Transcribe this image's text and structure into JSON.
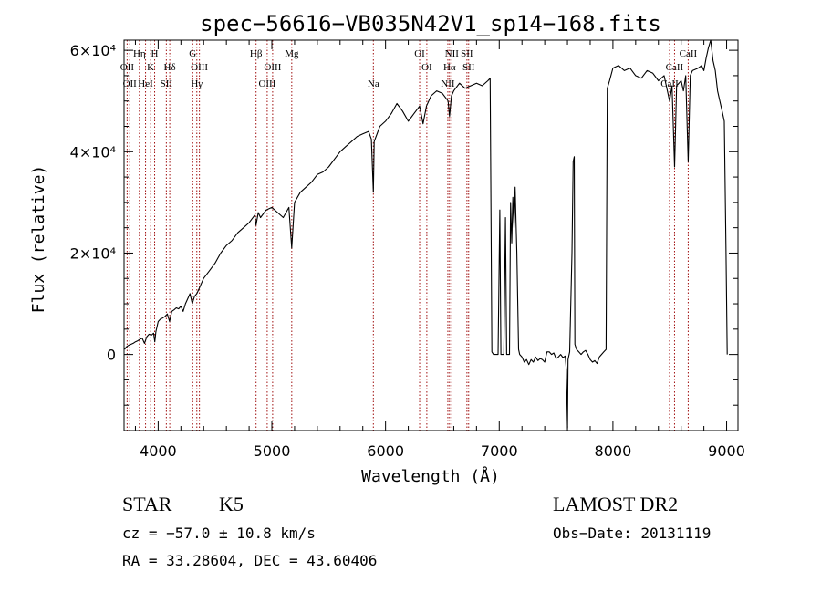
{
  "chart_data": {
    "type": "line",
    "title": "spec−56616−VB035N42V1_sp14−168.fits",
    "xlabel": "Wavelength (Å)",
    "ylabel": "Flux (relative)",
    "xlim": [
      3700,
      9100
    ],
    "ylim": [
      -15000,
      62000
    ],
    "grid": false,
    "x_ticks": [
      {
        "value": 4000,
        "label": "4000"
      },
      {
        "value": 5000,
        "label": "5000"
      },
      {
        "value": 6000,
        "label": "6000"
      },
      {
        "value": 7000,
        "label": "7000"
      },
      {
        "value": 8000,
        "label": "8000"
      },
      {
        "value": 9000,
        "label": "9000"
      }
    ],
    "y_ticks": [
      {
        "value": 0,
        "label": "0"
      },
      {
        "value": 20000,
        "label": "2×10⁴"
      },
      {
        "value": 40000,
        "label": "4×10⁴"
      },
      {
        "value": 60000,
        "label": "6×10⁴"
      }
    ],
    "series": [
      {
        "values": [
          [
            3705,
            1000
          ],
          [
            3720,
            1500
          ],
          [
            3740,
            1800
          ],
          [
            3760,
            2000
          ],
          [
            3780,
            2200
          ],
          [
            3800,
            2500
          ],
          [
            3820,
            2700
          ],
          [
            3840,
            3000
          ],
          [
            3860,
            3200
          ],
          [
            3880,
            2200
          ],
          [
            3900,
            3500
          ],
          [
            3920,
            4000
          ],
          [
            3940,
            3800
          ],
          [
            3960,
            4200
          ],
          [
            3970,
            2500
          ],
          [
            3980,
            4500
          ],
          [
            4000,
            6500
          ],
          [
            4020,
            7000
          ],
          [
            4040,
            7200
          ],
          [
            4060,
            7500
          ],
          [
            4080,
            8000
          ],
          [
            4100,
            6500
          ],
          [
            4120,
            8500
          ],
          [
            4140,
            8800
          ],
          [
            4160,
            9200
          ],
          [
            4180,
            9000
          ],
          [
            4200,
            9500
          ],
          [
            4220,
            8500
          ],
          [
            4240,
            10000
          ],
          [
            4260,
            11000
          ],
          [
            4280,
            12000
          ],
          [
            4300,
            10000
          ],
          [
            4320,
            11500
          ],
          [
            4340,
            12000
          ],
          [
            4360,
            13000
          ],
          [
            4380,
            14000
          ],
          [
            4400,
            15000
          ],
          [
            4450,
            16500
          ],
          [
            4500,
            18000
          ],
          [
            4550,
            20000
          ],
          [
            4600,
            21500
          ],
          [
            4650,
            22500
          ],
          [
            4700,
            24000
          ],
          [
            4750,
            25000
          ],
          [
            4800,
            26000
          ],
          [
            4850,
            27500
          ],
          [
            4861,
            25500
          ],
          [
            4880,
            28000
          ],
          [
            4900,
            27000
          ],
          [
            4950,
            28500
          ],
          [
            5000,
            29000
          ],
          [
            5050,
            28000
          ],
          [
            5100,
            27000
          ],
          [
            5150,
            29000
          ],
          [
            5175,
            21000
          ],
          [
            5200,
            30000
          ],
          [
            5250,
            32000
          ],
          [
            5300,
            33000
          ],
          [
            5350,
            34000
          ],
          [
            5400,
            35500
          ],
          [
            5450,
            36000
          ],
          [
            5500,
            37000
          ],
          [
            5550,
            38500
          ],
          [
            5600,
            40000
          ],
          [
            5650,
            41000
          ],
          [
            5700,
            42000
          ],
          [
            5750,
            43000
          ],
          [
            5800,
            43500
          ],
          [
            5850,
            44000
          ],
          [
            5875,
            42500
          ],
          [
            5893,
            32000
          ],
          [
            5900,
            42000
          ],
          [
            5950,
            45000
          ],
          [
            6000,
            46000
          ],
          [
            6050,
            47500
          ],
          [
            6100,
            49500
          ],
          [
            6150,
            48000
          ],
          [
            6200,
            46000
          ],
          [
            6250,
            47500
          ],
          [
            6300,
            49000
          ],
          [
            6330,
            45500
          ],
          [
            6360,
            49000
          ],
          [
            6400,
            51000
          ],
          [
            6450,
            52000
          ],
          [
            6500,
            51500
          ],
          [
            6550,
            50000
          ],
          [
            6563,
            47000
          ],
          [
            6580,
            51000
          ],
          [
            6600,
            52000
          ],
          [
            6650,
            53500
          ],
          [
            6700,
            52500
          ],
          [
            6750,
            53000
          ],
          [
            6800,
            53500
          ],
          [
            6850,
            53000
          ],
          [
            6900,
            54000
          ],
          [
            6920,
            54500
          ],
          [
            6935,
            500
          ],
          [
            6950,
            0
          ],
          [
            6990,
            0
          ],
          [
            7005,
            28500
          ],
          [
            7015,
            0
          ],
          [
            7040,
            0
          ],
          [
            7055,
            27000
          ],
          [
            7065,
            0
          ],
          [
            7090,
            0
          ],
          [
            7100,
            30000
          ],
          [
            7110,
            22000
          ],
          [
            7120,
            31000
          ],
          [
            7130,
            25000
          ],
          [
            7140,
            33000
          ],
          [
            7155,
            20000
          ],
          [
            7170,
            1000
          ],
          [
            7180,
            0
          ],
          [
            7200,
            -500
          ],
          [
            7220,
            -1500
          ],
          [
            7240,
            -1000
          ],
          [
            7260,
            -2000
          ],
          [
            7280,
            -1000
          ],
          [
            7300,
            -1500
          ],
          [
            7320,
            -500
          ],
          [
            7340,
            -1200
          ],
          [
            7360,
            -800
          ],
          [
            7380,
            -1000
          ],
          [
            7400,
            -1500
          ],
          [
            7420,
            500
          ],
          [
            7440,
            500
          ],
          [
            7460,
            0
          ],
          [
            7480,
            300
          ],
          [
            7500,
            -800
          ],
          [
            7520,
            -500
          ],
          [
            7540,
            0
          ],
          [
            7560,
            -600
          ],
          [
            7580,
            -300
          ],
          [
            7590,
            -3000
          ],
          [
            7600,
            -14500
          ],
          [
            7605,
            -1000
          ],
          [
            7620,
            500
          ],
          [
            7640,
            20000
          ],
          [
            7650,
            38000
          ],
          [
            7660,
            39000
          ],
          [
            7665,
            2000
          ],
          [
            7680,
            1000
          ],
          [
            7700,
            500
          ],
          [
            7720,
            0
          ],
          [
            7740,
            500
          ],
          [
            7760,
            800
          ],
          [
            7780,
            0
          ],
          [
            7800,
            -1000
          ],
          [
            7820,
            -1500
          ],
          [
            7840,
            -1200
          ],
          [
            7860,
            -1800
          ],
          [
            7880,
            -500
          ],
          [
            7900,
            0
          ],
          [
            7920,
            500
          ],
          [
            7940,
            1000
          ],
          [
            7950,
            52500
          ],
          [
            7970,
            54000
          ],
          [
            8000,
            56500
          ],
          [
            8050,
            57000
          ],
          [
            8100,
            56000
          ],
          [
            8150,
            56500
          ],
          [
            8200,
            55000
          ],
          [
            8250,
            54500
          ],
          [
            8300,
            56000
          ],
          [
            8350,
            55500
          ],
          [
            8400,
            54000
          ],
          [
            8450,
            55000
          ],
          [
            8498,
            50000
          ],
          [
            8520,
            53000
          ],
          [
            8542,
            37000
          ],
          [
            8560,
            53000
          ],
          [
            8600,
            54000
          ],
          [
            8620,
            52000
          ],
          [
            8640,
            55000
          ],
          [
            8662,
            38000
          ],
          [
            8680,
            55000
          ],
          [
            8700,
            56000
          ],
          [
            8750,
            56500
          ],
          [
            8780,
            57000
          ],
          [
            8800,
            56000
          ],
          [
            8820,
            58500
          ],
          [
            8840,
            60500
          ],
          [
            8860,
            62000
          ],
          [
            8880,
            58000
          ],
          [
            8900,
            56000
          ],
          [
            8920,
            52000
          ],
          [
            8940,
            50000
          ],
          [
            8960,
            48000
          ],
          [
            8980,
            46000
          ],
          [
            8995,
            20000
          ],
          [
            9005,
            0
          ]
        ]
      }
    ],
    "lines": [
      {
        "x": 3727,
        "label": "OII",
        "row": 2
      },
      {
        "x": 3750,
        "label": "OII",
        "row": 3
      },
      {
        "x": 3835,
        "label": "Hη",
        "row": 1
      },
      {
        "x": 3889,
        "label": "HeI",
        "row": 3
      },
      {
        "x": 3934,
        "label": "K",
        "row": 2
      },
      {
        "x": 3969,
        "label": "H",
        "row": 1
      },
      {
        "x": 4072,
        "label": "SII",
        "row": 3
      },
      {
        "x": 4102,
        "label": "Hδ",
        "row": 2
      },
      {
        "x": 4304,
        "label": "G",
        "row": 1
      },
      {
        "x": 4340,
        "label": "Hγ",
        "row": 3
      },
      {
        "x": 4363,
        "label": "OIII",
        "row": 2
      },
      {
        "x": 4861,
        "label": "Hβ",
        "row": 1
      },
      {
        "x": 4959,
        "label": "OIII",
        "row": 3
      },
      {
        "x": 5007,
        "label": "OIII",
        "row": 2
      },
      {
        "x": 5175,
        "label": "Mg",
        "row": 1
      },
      {
        "x": 5893,
        "label": "Na",
        "row": 3
      },
      {
        "x": 6300,
        "label": "OI",
        "row": 1
      },
      {
        "x": 6363,
        "label": "OI",
        "row": 2
      },
      {
        "x": 6548,
        "label": "NII",
        "row": 3
      },
      {
        "x": 6563,
        "label": "Hα",
        "row": 2
      },
      {
        "x": 6583,
        "label": "NII",
        "row": 1
      },
      {
        "x": 6716,
        "label": "SII",
        "row": 1
      },
      {
        "x": 6731,
        "label": "SII",
        "row": 2
      },
      {
        "x": 8498,
        "label": "CaII",
        "row": 3
      },
      {
        "x": 8542,
        "label": "CaII",
        "row": 2
      },
      {
        "x": 8662,
        "label": "CaII",
        "row": 1
      }
    ],
    "colors": {
      "spectrum": "#000000",
      "lines": "#a01010",
      "axes": "#000000"
    }
  },
  "info": {
    "class": "STAR",
    "subclass": "K5",
    "cz": "cz = −57.0 ± 10.8 km/s",
    "coords": "RA =  33.28604, DEC =  43.60406",
    "survey": "LAMOST DR2",
    "obs_date": "Obs−Date: 20131119"
  }
}
